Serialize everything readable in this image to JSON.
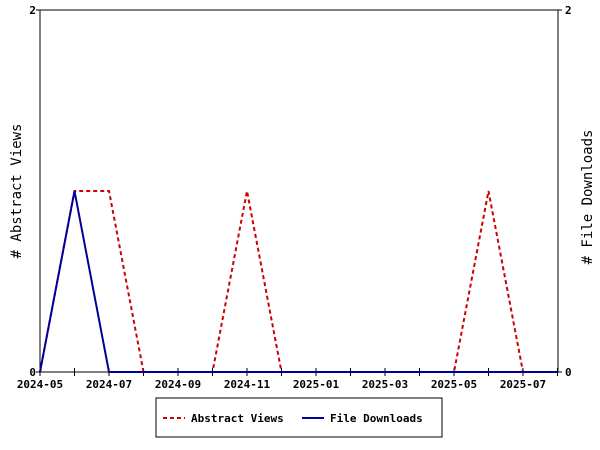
{
  "chart_data": {
    "type": "line",
    "x": [
      "2024-05",
      "2024-06",
      "2024-07",
      "2024-08",
      "2024-09",
      "2024-10",
      "2024-11",
      "2024-12",
      "2025-01",
      "2025-02",
      "2025-03",
      "2025-04",
      "2025-05",
      "2025-06",
      "2025-07",
      "2025-08"
    ],
    "x_tick_labels": [
      "2024-05",
      "2024-07",
      "2024-09",
      "2024-11",
      "2025-01",
      "2025-03",
      "2025-05",
      "2025-07"
    ],
    "series": [
      {
        "name": "Abstract Views",
        "axis": "left",
        "color": "#cc0000",
        "style": "dashed",
        "points": [
          [
            "2024-05",
            0
          ],
          [
            "2024-06",
            1
          ],
          [
            "2024-07",
            1
          ],
          [
            "2024-08",
            0
          ],
          [
            "2024-09",
            0
          ],
          [
            "2024-10",
            0
          ],
          [
            "2024-11",
            1
          ],
          [
            "2024-12",
            0
          ],
          [
            "2025-01",
            0
          ],
          [
            "2025-02",
            0
          ],
          [
            "2025-03",
            0
          ],
          [
            "2025-04",
            0
          ],
          [
            "2025-05",
            0
          ],
          [
            "2025-06",
            1
          ],
          [
            "2025-07",
            0
          ],
          [
            "2025-08",
            0
          ]
        ]
      },
      {
        "name": "File Downloads",
        "axis": "right",
        "color": "#000099",
        "style": "solid",
        "points": [
          [
            "2024-05",
            0
          ],
          [
            "2024-06",
            1
          ],
          [
            "2024-07",
            0
          ],
          [
            "2024-08",
            0
          ],
          [
            "2024-09",
            0
          ],
          [
            "2024-10",
            0
          ],
          [
            "2024-11",
            0
          ],
          [
            "2024-12",
            0
          ],
          [
            "2025-01",
            0
          ],
          [
            "2025-02",
            0
          ],
          [
            "2025-03",
            0
          ],
          [
            "2025-04",
            0
          ],
          [
            "2025-05",
            0
          ],
          [
            "2025-06",
            0
          ],
          [
            "2025-07",
            0
          ],
          [
            "2025-08",
            0
          ]
        ]
      }
    ],
    "ylabel_left": "# Abstract Views",
    "ylabel_right": "# File Downloads",
    "ylim_left": [
      0,
      2
    ],
    "ylim_right": [
      0,
      2
    ],
    "y_ticks_left": [
      "0",
      "2"
    ],
    "y_ticks_right": [
      "0",
      "2"
    ],
    "grid": false,
    "legend_position": "bottom-center"
  }
}
